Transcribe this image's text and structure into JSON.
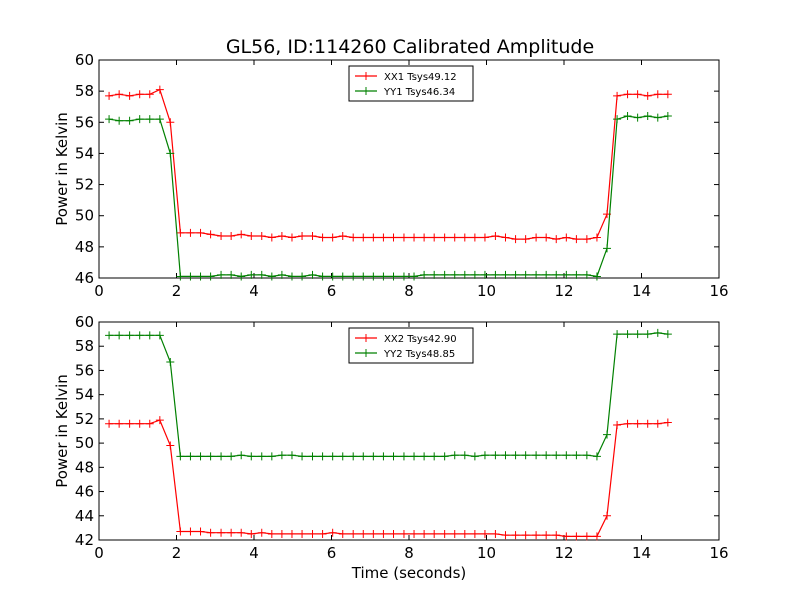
{
  "title": "GL56, ID:114260 Calibrated Amplitude",
  "chart_data": [
    {
      "type": "line",
      "ylabel": "Power in Kelvin",
      "xlabel": "",
      "xlim": [
        0,
        16
      ],
      "ylim": [
        46,
        60
      ],
      "xticks": [
        "0",
        "2",
        "4",
        "6",
        "8",
        "10",
        "12",
        "14",
        "16"
      ],
      "yticks": [
        "46",
        "48",
        "50",
        "52",
        "54",
        "56",
        "58",
        "60"
      ],
      "legend": "top-center",
      "x": [
        0.26,
        0.52,
        0.79,
        1.05,
        1.31,
        1.57,
        1.84,
        2.1,
        2.36,
        2.62,
        2.88,
        3.15,
        3.41,
        3.67,
        3.93,
        4.2,
        4.46,
        4.72,
        4.98,
        5.24,
        5.51,
        5.77,
        6.03,
        6.29,
        6.56,
        6.82,
        7.08,
        7.34,
        7.6,
        7.87,
        8.13,
        8.39,
        8.65,
        8.92,
        9.18,
        9.44,
        9.7,
        9.96,
        10.23,
        10.49,
        10.75,
        11.01,
        11.28,
        11.54,
        11.8,
        12.06,
        12.32,
        12.59,
        12.85,
        13.11,
        13.37,
        13.64,
        13.9,
        14.16,
        14.42,
        14.68
      ],
      "series": [
        {
          "name": "XX1 Tsys49.12",
          "color": "#ff0000",
          "values": [
            57.7,
            57.8,
            57.7,
            57.8,
            57.8,
            58.1,
            56.0,
            48.9,
            48.9,
            48.9,
            48.8,
            48.7,
            48.7,
            48.8,
            48.7,
            48.7,
            48.6,
            48.7,
            48.6,
            48.7,
            48.7,
            48.6,
            48.6,
            48.7,
            48.6,
            48.6,
            48.6,
            48.6,
            48.6,
            48.6,
            48.6,
            48.6,
            48.6,
            48.6,
            48.6,
            48.6,
            48.6,
            48.6,
            48.7,
            48.6,
            48.5,
            48.5,
            48.6,
            48.6,
            48.5,
            48.6,
            48.5,
            48.5,
            48.6,
            50.1,
            57.7,
            57.8,
            57.8,
            57.7,
            57.8,
            57.8
          ]
        },
        {
          "name": "YY1 Tsys46.34",
          "color": "#008000",
          "values": [
            56.2,
            56.1,
            56.1,
            56.2,
            56.2,
            56.2,
            54.0,
            46.1,
            46.1,
            46.1,
            46.1,
            46.2,
            46.2,
            46.1,
            46.2,
            46.2,
            46.1,
            46.2,
            46.1,
            46.1,
            46.2,
            46.1,
            46.1,
            46.1,
            46.1,
            46.1,
            46.1,
            46.1,
            46.1,
            46.1,
            46.1,
            46.2,
            46.2,
            46.2,
            46.2,
            46.2,
            46.2,
            46.2,
            46.2,
            46.2,
            46.2,
            46.2,
            46.2,
            46.2,
            46.2,
            46.2,
            46.2,
            46.2,
            46.1,
            47.9,
            56.2,
            56.4,
            56.3,
            56.4,
            56.3,
            56.4
          ]
        }
      ]
    },
    {
      "type": "line",
      "ylabel": "Power in Kelvin",
      "xlabel": "Time (seconds)",
      "xlim": [
        0,
        16
      ],
      "ylim": [
        42,
        60
      ],
      "xticks": [
        "0",
        "2",
        "4",
        "6",
        "8",
        "10",
        "12",
        "14",
        "16"
      ],
      "yticks": [
        "42",
        "44",
        "46",
        "48",
        "50",
        "52",
        "54",
        "56",
        "58",
        "60"
      ],
      "legend": "top-center",
      "x": [
        0.26,
        0.52,
        0.79,
        1.05,
        1.31,
        1.57,
        1.84,
        2.1,
        2.36,
        2.62,
        2.88,
        3.15,
        3.41,
        3.67,
        3.93,
        4.2,
        4.46,
        4.72,
        4.98,
        5.24,
        5.51,
        5.77,
        6.03,
        6.29,
        6.56,
        6.82,
        7.08,
        7.34,
        7.6,
        7.87,
        8.13,
        8.39,
        8.65,
        8.92,
        9.18,
        9.44,
        9.7,
        9.96,
        10.23,
        10.49,
        10.75,
        11.01,
        11.28,
        11.54,
        11.8,
        12.06,
        12.32,
        12.59,
        12.85,
        13.11,
        13.37,
        13.64,
        13.9,
        14.16,
        14.42,
        14.68
      ],
      "series": [
        {
          "name": "XX2 Tsys42.90",
          "color": "#ff0000",
          "values": [
            51.6,
            51.6,
            51.6,
            51.6,
            51.6,
            51.9,
            49.8,
            42.7,
            42.7,
            42.7,
            42.6,
            42.6,
            42.6,
            42.6,
            42.5,
            42.6,
            42.5,
            42.5,
            42.5,
            42.5,
            42.5,
            42.5,
            42.6,
            42.5,
            42.5,
            42.5,
            42.5,
            42.5,
            42.5,
            42.5,
            42.5,
            42.5,
            42.5,
            42.5,
            42.5,
            42.5,
            42.5,
            42.5,
            42.5,
            42.4,
            42.4,
            42.4,
            42.4,
            42.4,
            42.4,
            42.3,
            42.3,
            42.3,
            42.3,
            44.0,
            51.5,
            51.6,
            51.6,
            51.6,
            51.6,
            51.7
          ]
        },
        {
          "name": "YY2 Tsys48.85",
          "color": "#008000",
          "values": [
            58.9,
            58.9,
            58.9,
            58.9,
            58.9,
            58.9,
            56.7,
            48.9,
            48.9,
            48.9,
            48.9,
            48.9,
            48.9,
            49.0,
            48.9,
            48.9,
            48.9,
            49.0,
            49.0,
            48.9,
            48.9,
            48.9,
            48.9,
            48.9,
            48.9,
            48.9,
            48.9,
            48.9,
            48.9,
            48.9,
            48.9,
            48.9,
            48.9,
            48.9,
            49.0,
            49.0,
            48.9,
            49.0,
            49.0,
            49.0,
            49.0,
            49.0,
            49.0,
            49.0,
            49.0,
            49.0,
            49.0,
            49.0,
            48.9,
            50.7,
            59.0,
            59.0,
            59.0,
            59.0,
            59.1,
            59.0
          ]
        }
      ]
    }
  ]
}
